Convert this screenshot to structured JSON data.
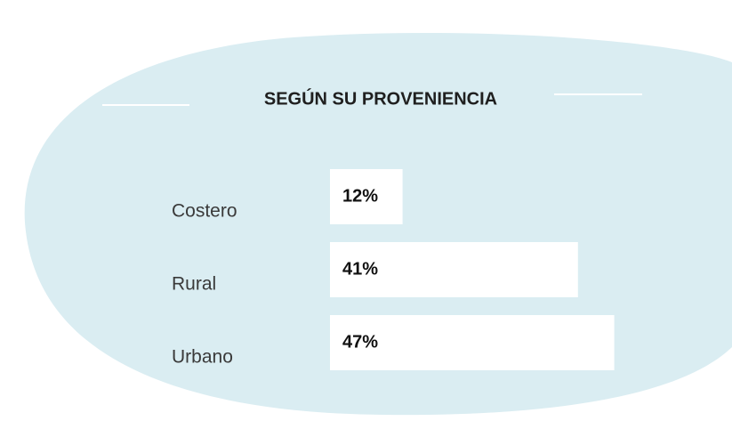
{
  "chart_data": {
    "type": "bar",
    "orientation": "horizontal",
    "title": "SEGÚN SU PROVENIENCIA",
    "categories": [
      "Costero",
      "Rural",
      "Urbano"
    ],
    "values": [
      12,
      41,
      47
    ],
    "value_labels": [
      "12%",
      "41%",
      "47%"
    ],
    "color": "#ffffff"
  }
}
